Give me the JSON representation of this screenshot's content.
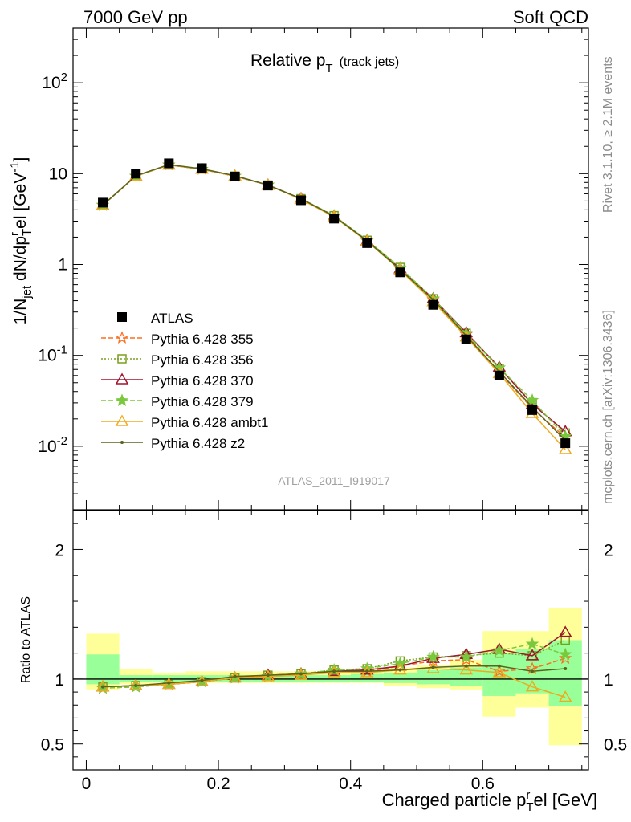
{
  "header": {
    "left": "7000 GeV pp",
    "right": "Soft QCD"
  },
  "title": {
    "main": "Relative p",
    "sub": "T",
    "note": "(track jets)"
  },
  "side_text": {
    "rivet": "Rivet 3.1.10, ≥ 2.1M events",
    "source": "mcplots.cern.ch [arXiv:1306.3436]"
  },
  "analysis_id": "ATLAS_2011_I919017",
  "colors": {
    "atlas": "#000000",
    "p355": "#ff6d1f",
    "p356": "#78a01e",
    "p370": "#a0142d",
    "p379": "#7ac83c",
    "ambt1": "#f0aa1e",
    "z2": "#5a641e",
    "band_outer": "#ffff99",
    "band_inner": "#99ff99"
  },
  "chart_data": [
    {
      "type": "scatter",
      "panel": "main",
      "ylabel": "1/N_jet dN/dp_T^rel [GeV^-1]",
      "yscale": "log",
      "ylim": [
        0.002,
        400
      ],
      "xlim": [
        -0.02,
        0.76
      ],
      "yticks": [
        {
          "v": 0.01,
          "base": "10",
          "exp": "-2"
        },
        {
          "v": 0.1,
          "base": "10",
          "exp": "-1"
        },
        {
          "v": 1,
          "base": "1",
          "exp": ""
        },
        {
          "v": 10,
          "base": "10",
          "exp": ""
        },
        {
          "v": 100,
          "base": "10",
          "exp": "2"
        }
      ],
      "x": [
        0.025,
        0.075,
        0.125,
        0.175,
        0.225,
        0.275,
        0.325,
        0.375,
        0.425,
        0.475,
        0.525,
        0.575,
        0.625,
        0.675,
        0.725
      ],
      "series": [
        {
          "name": "ATLAS",
          "key": "atlas",
          "values": [
            4.8,
            10.0,
            13.0,
            11.5,
            9.3,
            7.4,
            5.1,
            3.2,
            1.72,
            0.82,
            0.36,
            0.15,
            0.06,
            0.025,
            0.0108
          ]
        },
        {
          "name": "Pythia 6.428 355",
          "key": "p355",
          "values": [
            4.5,
            9.4,
            12.5,
            11.2,
            9.4,
            7.5,
            5.3,
            3.4,
            1.82,
            0.9,
            0.41,
            0.17,
            0.065,
            0.026,
            0.0125
          ]
        },
        {
          "name": "Pythia 6.428 356",
          "key": "p356",
          "values": [
            4.5,
            9.4,
            12.5,
            11.2,
            9.4,
            7.5,
            5.3,
            3.45,
            1.85,
            0.93,
            0.42,
            0.175,
            0.072,
            0.03,
            0.014
          ]
        },
        {
          "name": "Pythia 6.428 370",
          "key": "p370",
          "values": [
            4.5,
            9.4,
            12.5,
            11.2,
            9.4,
            7.5,
            5.3,
            3.4,
            1.83,
            0.9,
            0.42,
            0.178,
            0.074,
            0.029,
            0.0145
          ]
        },
        {
          "name": "Pythia 6.428 379",
          "key": "p379",
          "values": [
            4.5,
            9.4,
            12.5,
            11.2,
            9.4,
            7.5,
            5.3,
            3.45,
            1.85,
            0.92,
            0.42,
            0.175,
            0.073,
            0.032,
            0.0128
          ]
        },
        {
          "name": "Pythia 6.428 ambt1",
          "key": "ambt1",
          "values": [
            4.5,
            9.4,
            12.5,
            11.2,
            9.4,
            7.5,
            5.2,
            3.35,
            1.8,
            0.87,
            0.39,
            0.16,
            0.063,
            0.023,
            0.0092
          ]
        },
        {
          "name": "Pythia 6.428 z2",
          "key": "z2",
          "values": [
            4.5,
            9.5,
            12.6,
            11.3,
            9.5,
            7.5,
            5.3,
            3.4,
            1.82,
            0.88,
            0.41,
            0.165,
            0.066,
            0.027,
            0.0116
          ]
        }
      ]
    },
    {
      "type": "scatter",
      "panel": "ratio",
      "ylabel": "Ratio to ATLAS",
      "xlabel": "Charged particle p_T^rel [GeV]",
      "ylim": [
        0.3,
        2.3
      ],
      "xlim": [
        -0.02,
        0.76
      ],
      "yticks": [
        0.5,
        1,
        2
      ],
      "xticks": [
        0,
        0.2,
        0.4,
        0.6
      ],
      "bands": {
        "edges": [
          0.0,
          0.05,
          0.1,
          0.15,
          0.2,
          0.25,
          0.3,
          0.35,
          0.4,
          0.45,
          0.5,
          0.55,
          0.6,
          0.65,
          0.7,
          0.75
        ],
        "outer_low": [
          0.92,
          0.96,
          0.97,
          0.97,
          0.97,
          0.97,
          0.97,
          0.97,
          0.97,
          0.95,
          0.93,
          0.92,
          0.71,
          0.78,
          0.49
        ],
        "outer_high": [
          1.35,
          1.08,
          1.05,
          1.06,
          1.06,
          1.06,
          1.06,
          1.06,
          1.07,
          1.09,
          1.11,
          1.15,
          1.37,
          1.37,
          1.55
        ],
        "inner_low": [
          0.96,
          0.98,
          0.98,
          0.98,
          0.98,
          0.98,
          0.98,
          0.98,
          0.98,
          0.97,
          0.96,
          0.95,
          0.87,
          0.89,
          0.79
        ],
        "inner_high": [
          1.19,
          1.03,
          1.03,
          1.03,
          1.03,
          1.03,
          1.03,
          1.03,
          1.04,
          1.05,
          1.07,
          1.09,
          1.2,
          1.23,
          1.3
        ]
      },
      "x": [
        0.025,
        0.075,
        0.125,
        0.175,
        0.225,
        0.275,
        0.325,
        0.375,
        0.425,
        0.475,
        0.525,
        0.575,
        0.625,
        0.675,
        0.725
      ],
      "series": [
        {
          "name": "Pythia 6.428 355",
          "key": "p355",
          "values": [
            0.93,
            0.94,
            0.96,
            0.98,
            1.01,
            1.02,
            1.04,
            1.06,
            1.06,
            1.1,
            1.14,
            1.15,
            1.06,
            1.08,
            1.16
          ]
        },
        {
          "name": "Pythia 6.428 356",
          "key": "p356",
          "values": [
            0.94,
            0.95,
            0.96,
            0.98,
            1.01,
            1.03,
            1.04,
            1.07,
            1.08,
            1.14,
            1.17,
            1.18,
            1.2,
            1.18,
            1.3
          ]
        },
        {
          "name": "Pythia 6.428 370",
          "key": "p370",
          "values": [
            0.94,
            0.95,
            0.96,
            0.98,
            1.01,
            1.03,
            1.04,
            1.06,
            1.07,
            1.1,
            1.16,
            1.19,
            1.23,
            1.18,
            1.36
          ]
        },
        {
          "name": "Pythia 6.428 379",
          "key": "p379",
          "values": [
            0.93,
            0.94,
            0.96,
            0.98,
            1.01,
            1.02,
            1.04,
            1.07,
            1.08,
            1.12,
            1.17,
            1.17,
            1.22,
            1.27,
            1.19
          ]
        },
        {
          "name": "Pythia 6.428 ambt1",
          "key": "ambt1",
          "values": [
            0.94,
            0.95,
            0.96,
            0.98,
            1.01,
            1.02,
            1.03,
            1.05,
            1.05,
            1.07,
            1.08,
            1.07,
            1.05,
            0.94,
            0.86
          ]
        },
        {
          "name": "Pythia 6.428 z2",
          "key": "z2",
          "values": [
            0.94,
            0.95,
            0.97,
            0.99,
            1.02,
            1.03,
            1.04,
            1.06,
            1.06,
            1.07,
            1.09,
            1.1,
            1.1,
            1.06,
            1.08
          ]
        }
      ]
    }
  ]
}
